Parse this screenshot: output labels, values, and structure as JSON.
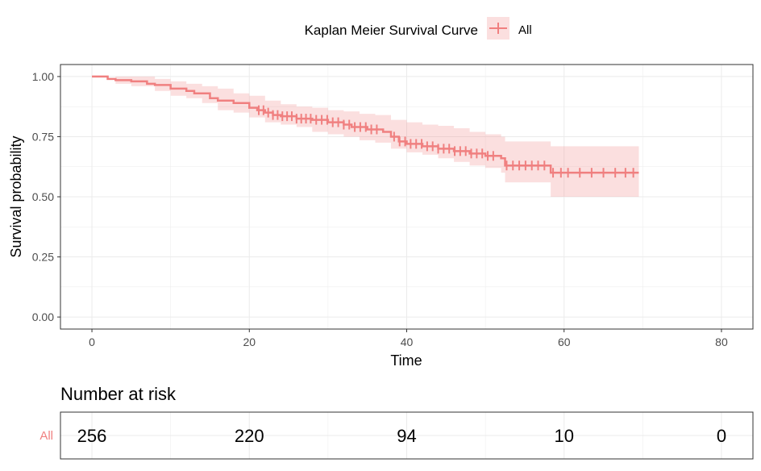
{
  "chart_data": [
    {
      "type": "line",
      "title": "",
      "legend": {
        "title": "Kaplan Meier Survival Curve",
        "entries": [
          "All"
        ],
        "placement": "top"
      },
      "xlabel": "Time",
      "ylabel": "Survival probability",
      "xlim": [
        -4,
        84
      ],
      "ylim": [
        -0.05,
        1.05
      ],
      "x_ticks": [
        0,
        20,
        40,
        60,
        80
      ],
      "y_ticks": [
        0.0,
        0.25,
        0.5,
        0.75,
        1.0
      ],
      "x_tick_labels": [
        "0",
        "20",
        "40",
        "60",
        "80"
      ],
      "y_tick_labels": [
        "0.00",
        "0.25",
        "0.50",
        "0.75",
        "1.00"
      ],
      "grid": true,
      "color": "#F08080",
      "series": [
        {
          "name": "All",
          "points": [
            [
              0,
              1.0
            ],
            [
              2,
              0.99
            ],
            [
              3,
              0.985
            ],
            [
              5,
              0.98
            ],
            [
              7,
              0.97
            ],
            [
              8,
              0.965
            ],
            [
              10,
              0.95
            ],
            [
              12,
              0.94
            ],
            [
              13,
              0.93
            ],
            [
              15,
              0.91
            ],
            [
              16,
              0.9
            ],
            [
              18,
              0.89
            ],
            [
              20,
              0.87
            ],
            [
              21,
              0.86
            ],
            [
              22,
              0.85
            ],
            [
              23,
              0.84
            ],
            [
              24,
              0.835
            ],
            [
              26,
              0.825
            ],
            [
              28,
              0.82
            ],
            [
              30,
              0.81
            ],
            [
              32,
              0.8
            ],
            [
              33,
              0.79
            ],
            [
              35,
              0.78
            ],
            [
              37,
              0.77
            ],
            [
              38,
              0.75
            ],
            [
              39,
              0.73
            ],
            [
              40,
              0.72
            ],
            [
              42,
              0.71
            ],
            [
              44,
              0.7
            ],
            [
              46,
              0.69
            ],
            [
              48,
              0.68
            ],
            [
              50,
              0.67
            ],
            [
              52,
              0.66
            ],
            [
              52.5,
              0.63
            ],
            [
              55,
              0.63
            ],
            [
              58,
              0.63
            ],
            [
              58.3,
              0.6
            ],
            [
              69.5,
              0.6
            ]
          ],
          "ci_upper": [
            [
              0,
              1.0
            ],
            [
              3,
              1.0
            ],
            [
              5,
              1.0
            ],
            [
              8,
              0.99
            ],
            [
              10,
              0.98
            ],
            [
              12,
              0.97
            ],
            [
              14,
              0.96
            ],
            [
              16,
              0.95
            ],
            [
              18,
              0.93
            ],
            [
              20,
              0.92
            ],
            [
              22,
              0.9
            ],
            [
              24,
              0.885
            ],
            [
              26,
              0.875
            ],
            [
              28,
              0.87
            ],
            [
              30,
              0.86
            ],
            [
              32,
              0.855
            ],
            [
              34,
              0.845
            ],
            [
              36,
              0.84
            ],
            [
              38,
              0.82
            ],
            [
              40,
              0.81
            ],
            [
              42,
              0.8
            ],
            [
              44,
              0.795
            ],
            [
              46,
              0.785
            ],
            [
              48,
              0.77
            ],
            [
              50,
              0.76
            ],
            [
              52,
              0.75
            ],
            [
              52.5,
              0.73
            ],
            [
              56,
              0.73
            ],
            [
              58,
              0.73
            ],
            [
              58.3,
              0.71
            ],
            [
              69.5,
              0.71
            ]
          ],
          "ci_lower": [
            [
              0,
              1.0
            ],
            [
              3,
              0.97
            ],
            [
              5,
              0.96
            ],
            [
              8,
              0.94
            ],
            [
              10,
              0.92
            ],
            [
              12,
              0.91
            ],
            [
              14,
              0.89
            ],
            [
              16,
              0.86
            ],
            [
              18,
              0.85
            ],
            [
              20,
              0.83
            ],
            [
              22,
              0.81
            ],
            [
              24,
              0.8
            ],
            [
              26,
              0.79
            ],
            [
              28,
              0.77
            ],
            [
              30,
              0.76
            ],
            [
              32,
              0.75
            ],
            [
              34,
              0.735
            ],
            [
              36,
              0.725
            ],
            [
              38,
              0.7
            ],
            [
              40,
              0.685
            ],
            [
              42,
              0.675
            ],
            [
              44,
              0.66
            ],
            [
              46,
              0.645
            ],
            [
              48,
              0.63
            ],
            [
              50,
              0.62
            ],
            [
              52,
              0.6
            ],
            [
              52.5,
              0.56
            ],
            [
              56,
              0.56
            ],
            [
              58,
              0.56
            ],
            [
              58.3,
              0.5
            ],
            [
              69.5,
              0.5
            ]
          ],
          "censor_times": [
            21.2,
            21.8,
            22.4,
            23.0,
            23.6,
            24.2,
            24.8,
            25.4,
            26.0,
            26.6,
            27.2,
            27.8,
            28.5,
            29.2,
            29.9,
            30.6,
            31.3,
            32.0,
            32.7,
            33.4,
            34.1,
            34.8,
            35.5,
            36.2,
            38.4,
            39.1,
            39.8,
            40.5,
            41.2,
            41.9,
            42.6,
            43.3,
            44.0,
            44.7,
            45.4,
            46.1,
            46.8,
            47.5,
            48.2,
            48.9,
            49.6,
            50.3,
            51.0,
            52.7,
            53.5,
            54.3,
            55.1,
            55.9,
            56.7,
            57.5,
            58.6,
            59.6,
            60.5,
            62.0,
            63.5,
            65.0,
            66.5,
            67.8,
            68.8
          ]
        }
      ]
    },
    {
      "type": "table",
      "title": "Number at risk",
      "row_labels": [
        "All"
      ],
      "x": [
        0,
        20,
        40,
        60,
        80
      ],
      "values": [
        [
          256,
          220,
          94,
          10,
          0
        ]
      ],
      "color": "#F08080"
    }
  ]
}
